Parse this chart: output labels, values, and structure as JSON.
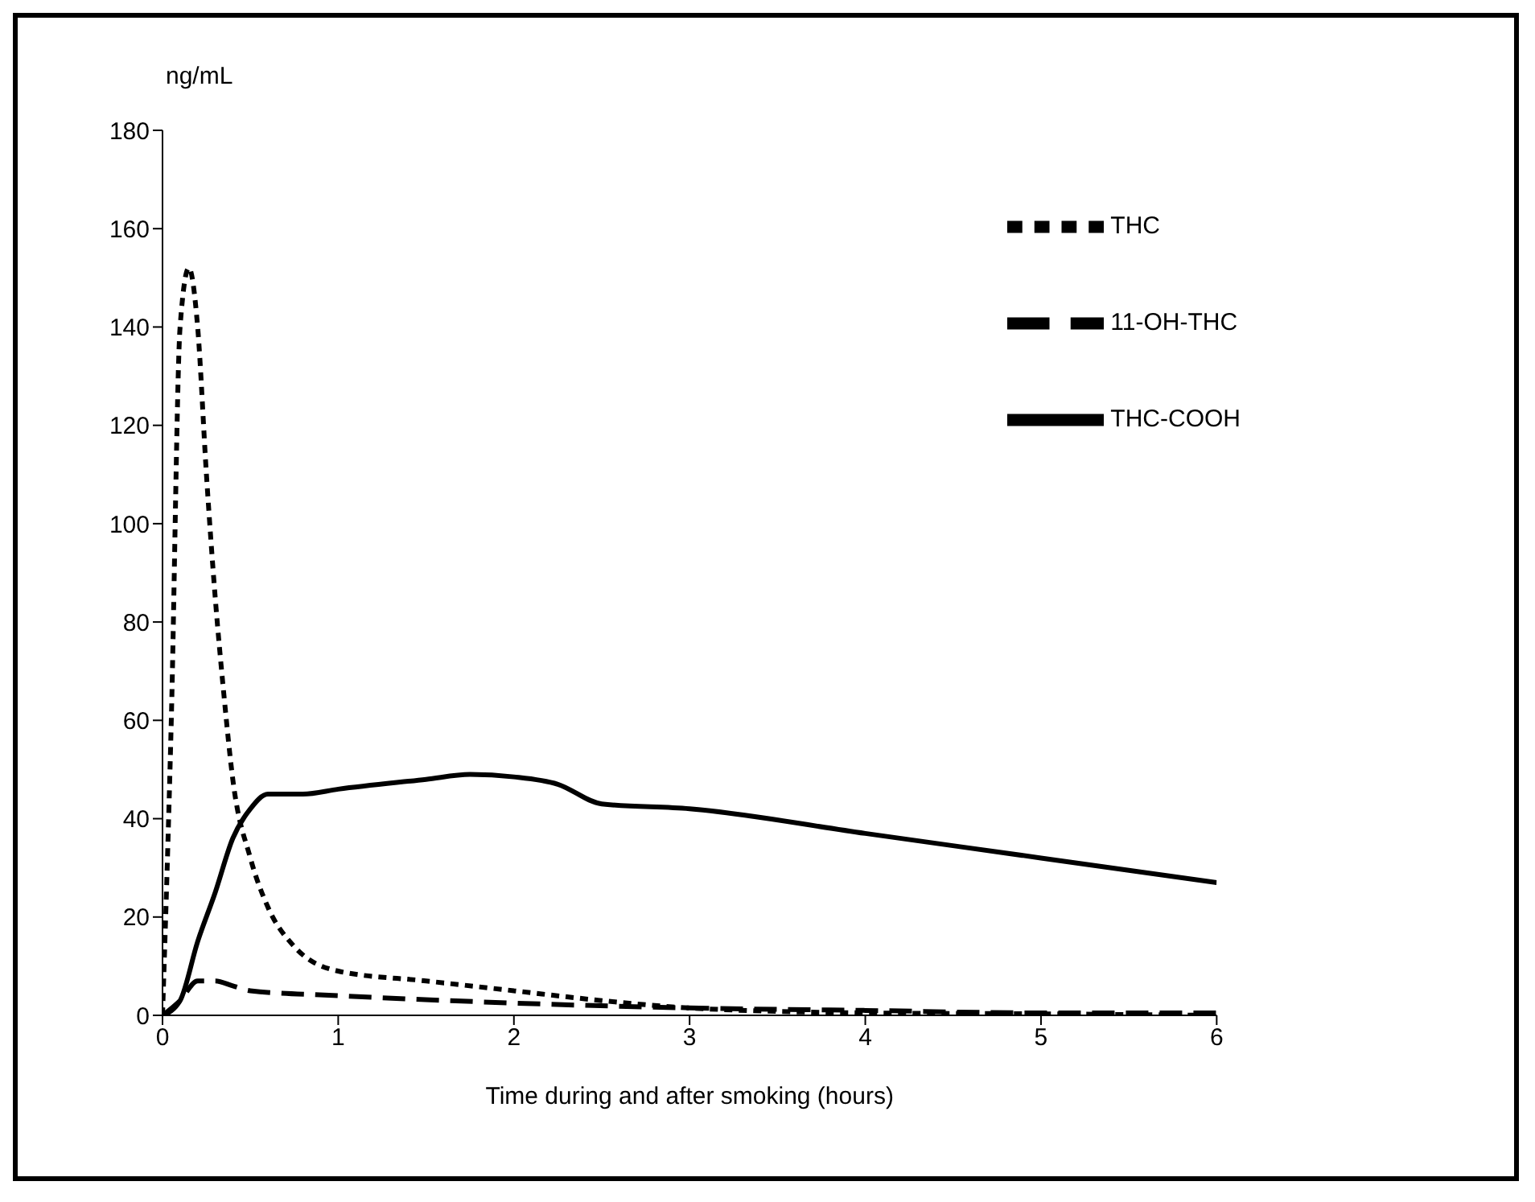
{
  "chart_data": {
    "type": "line",
    "xlabel": "Time during and after smoking (hours)",
    "ylabel": "ng/mL",
    "xlim": [
      0,
      6
    ],
    "xticks": [
      0,
      1,
      2,
      3,
      4,
      5,
      6
    ],
    "ylim": [
      0,
      180
    ],
    "yticks": [
      0,
      20,
      40,
      60,
      80,
      100,
      120,
      140,
      160,
      180
    ],
    "grid": false,
    "legend": "top right",
    "marker": "none",
    "series": [
      {
        "name": "THC",
        "color": "#000000",
        "line_style": "dotted",
        "x": [
          0,
          0.05,
          0.1,
          0.15,
          0.2,
          0.25,
          0.3,
          0.35,
          0.4,
          0.5,
          0.6,
          0.75,
          1,
          1.5,
          2,
          2.5,
          3,
          4,
          5,
          6
        ],
        "values": [
          0,
          60,
          140,
          152,
          140,
          110,
          85,
          65,
          48,
          32,
          22,
          14,
          9,
          7,
          5,
          3,
          1.5,
          0.5,
          0.3,
          0
        ]
      },
      {
        "name": "11-OH-THC",
        "color": "#000000",
        "line_style": "dashed",
        "x": [
          0,
          0.1,
          0.2,
          0.3,
          0.4,
          0.5,
          1,
          2,
          3,
          4,
          5,
          6
        ],
        "values": [
          0,
          3,
          7,
          7,
          6,
          5,
          4,
          2.5,
          1.5,
          1,
          0.5,
          0.5
        ]
      },
      {
        "name": "THC-COOH",
        "color": "#000000",
        "line_style": "solid",
        "x": [
          0,
          0.1,
          0.2,
          0.3,
          0.4,
          0.5,
          0.6,
          0.8,
          1,
          1.5,
          1.75,
          2,
          2.25,
          2.5,
          3,
          4,
          5,
          6
        ],
        "values": [
          0,
          3,
          15,
          25,
          36,
          42,
          45,
          45,
          46,
          48,
          49,
          48.5,
          47,
          43,
          42,
          37,
          32,
          27
        ]
      }
    ]
  }
}
